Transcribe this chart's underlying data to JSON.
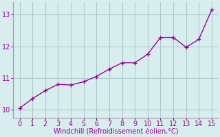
{
  "x": [
    0,
    1,
    2,
    3,
    4,
    5,
    6,
    7,
    8,
    9,
    10,
    11,
    12,
    13,
    14,
    15
  ],
  "y": [
    10.05,
    10.35,
    10.6,
    10.8,
    10.78,
    10.88,
    11.05,
    11.28,
    11.48,
    11.48,
    11.75,
    12.28,
    12.28,
    11.97,
    12.22,
    13.15
  ],
  "line_color": "#990099",
  "marker": "+",
  "marker_size": 4,
  "marker_lw": 1.0,
  "xlabel": "Windchill (Refroidissement éolien,°C)",
  "xlabel_color": "#990099",
  "ylabel_ticks": [
    10,
    11,
    12,
    13
  ],
  "xtick_labels": [
    "0",
    "1",
    "2",
    "3",
    "4",
    "5",
    "6",
    "7",
    "8",
    "9",
    "10",
    "11",
    "12",
    "13",
    "14",
    "15"
  ],
  "xlim": [
    -0.5,
    15.5
  ],
  "ylim": [
    9.75,
    13.4
  ],
  "bg_color": "#d8eeee",
  "grid_color": "#aacccc",
  "tick_color": "#990099",
  "line_width": 1.0,
  "label_fontsize": 7,
  "tick_fontsize": 7
}
